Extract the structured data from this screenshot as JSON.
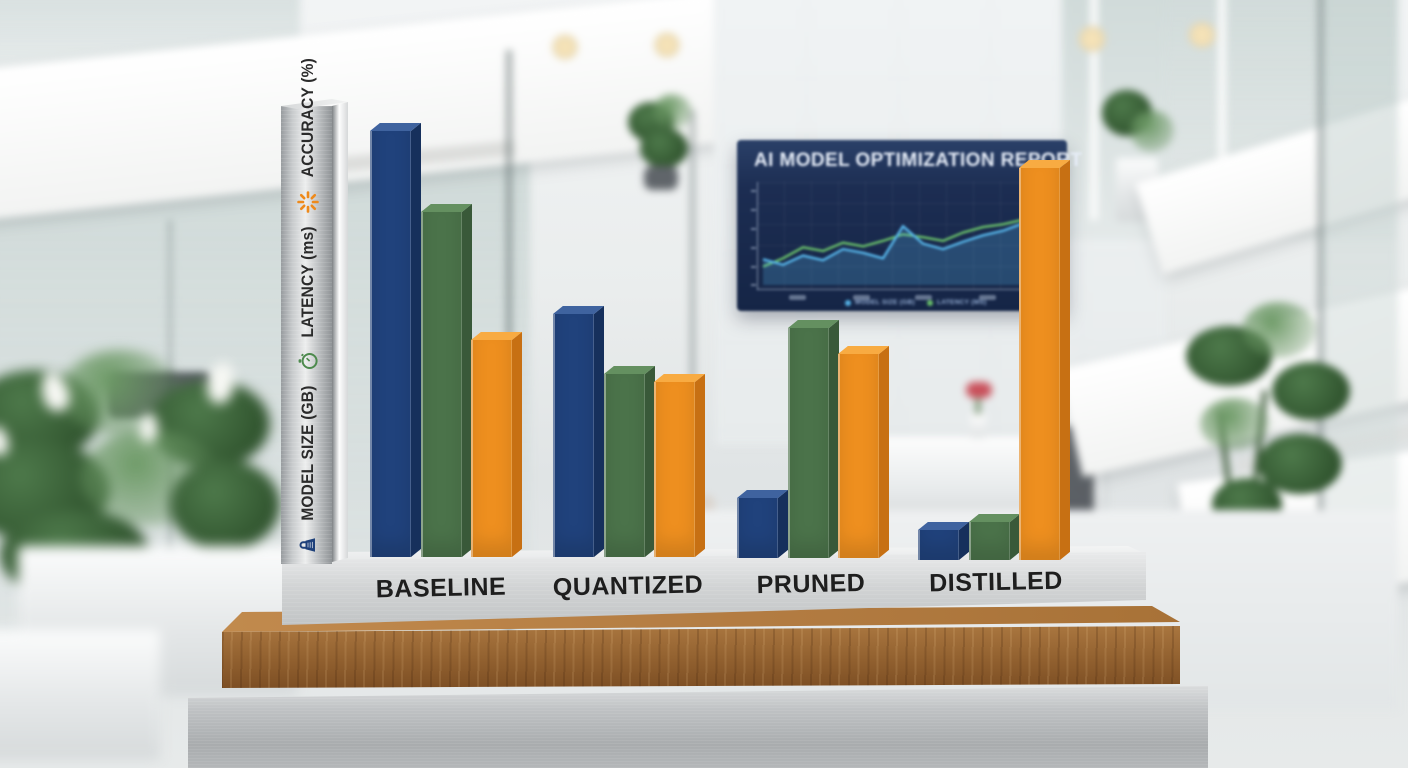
{
  "screen": {
    "title": "AI MODEL OPTIMIZATION REPORT",
    "legend": [
      {
        "label": "MODEL SIZE (GB)",
        "color": "#56b4e8"
      },
      {
        "label": "LATENCY (MS)",
        "color": "#69bf6a"
      }
    ]
  },
  "sculpture": {
    "axis_icons": [
      "weight-icon",
      "stopwatch-icon",
      "sparkle-icon"
    ],
    "material_colors": {
      "wood_base": "#9a6437",
      "silver": "#c7c9cb"
    }
  },
  "chart_data": [
    {
      "type": "bar",
      "title": "",
      "categories": [
        "BASELINE",
        "QUANTIZED",
        "PRUNED",
        "DISTILLED"
      ],
      "series": [
        {
          "key": "model-size",
          "name": "MODEL SIZE (GB)",
          "color": "#20427c",
          "side": "#16305c",
          "top": "#3f639f",
          "values": [
            100,
            57,
            14,
            7
          ]
        },
        {
          "key": "latency",
          "name": "LATENCY (ms)",
          "color": "#4b734a",
          "side": "#395939",
          "top": "#649060",
          "values": [
            81,
            43,
            54,
            9
          ]
        },
        {
          "key": "accuracy",
          "name": "ACCURACY (%)",
          "color": "#ee8f1f",
          "side": "#c77013",
          "top": "#f8ab42",
          "values": [
            51,
            41,
            48,
            92
          ]
        }
      ],
      "ylim": [
        0,
        100
      ],
      "value_note": "relative bar heights in % of tallest bar; sculpture shows no numeric axis",
      "legend_position": "left-axis-column"
    },
    {
      "type": "line",
      "title": "AI MODEL OPTIMIZATION REPORT",
      "x": [
        1,
        2,
        3,
        4,
        5,
        6,
        7,
        8,
        9,
        10,
        11,
        12,
        13,
        14,
        15
      ],
      "series": [
        {
          "name": "MODEL SIZE (GB)",
          "color": "#56b4e8",
          "fill": true,
          "values": [
            28,
            22,
            32,
            27,
            39,
            35,
            29,
            64,
            45,
            39,
            47,
            54,
            59,
            67,
            84
          ]
        },
        {
          "name": "LATENCY (MS)",
          "color": "#69bf6a",
          "fill": false,
          "values": [
            20,
            29,
            41,
            37,
            46,
            42,
            48,
            55,
            52,
            48,
            57,
            63,
            66,
            71,
            78
          ]
        }
      ],
      "ylim": [
        0,
        100
      ],
      "grid": true,
      "legend_position": "bottom"
    }
  ]
}
